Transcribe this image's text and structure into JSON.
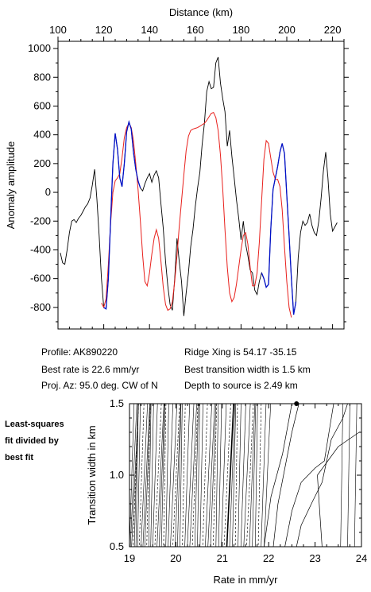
{
  "info": {
    "profile": "Profile: AK890220",
    "best_rate": "Best rate is 22.6 mm/yr",
    "proj_az": "Proj. Az: 95.0 deg. CW of N",
    "ridge_xing": "Ridge Xing is 54.17 -35.15",
    "best_width": "Best transition width is 1.5 km",
    "depth": "Depth to source is   2.49 km"
  },
  "side_note": [
    "Least-squares",
    "fit divided by",
    "best fit"
  ],
  "colors": {
    "observed": "#000000",
    "model": "#e8201c",
    "fit_window": "#0010c8",
    "contour": "#000000"
  },
  "chart_data": [
    {
      "type": "line",
      "title": "",
      "xlabel": "Distance (km)",
      "ylabel": "Anomaly amplitude",
      "xlim": [
        100,
        225
      ],
      "ylim": [
        -950,
        1050
      ],
      "xticks": [
        100,
        120,
        140,
        160,
        180,
        200,
        220
      ],
      "yticks": [
        -800,
        -600,
        -400,
        -200,
        0,
        200,
        400,
        600,
        800,
        1000
      ],
      "grid": false,
      "series": [
        {
          "role": "observed",
          "points": [
            [
              101,
              -420
            ],
            [
              102,
              -490
            ],
            [
              103,
              -500
            ],
            [
              104,
              -400
            ],
            [
              105,
              -280
            ],
            [
              106,
              -200
            ],
            [
              107,
              -190
            ],
            [
              108,
              -210
            ],
            [
              109,
              -180
            ],
            [
              110,
              -160
            ],
            [
              111,
              -130
            ],
            [
              112,
              -100
            ],
            [
              113,
              -80
            ],
            [
              114,
              -40
            ],
            [
              115,
              50
            ],
            [
              116,
              160
            ],
            [
              117,
              -50
            ],
            [
              118,
              -300
            ],
            [
              119,
              -600
            ],
            [
              120,
              -800
            ],
            [
              121,
              -810
            ],
            [
              122,
              -600
            ],
            [
              123,
              -200
            ],
            [
              124,
              200
            ],
            [
              125,
              410
            ],
            [
              126,
              300
            ],
            [
              127,
              100
            ],
            [
              128,
              40
            ],
            [
              129,
              200
            ],
            [
              130,
              420
            ],
            [
              131,
              490
            ],
            [
              132,
              440
            ],
            [
              133,
              280
            ],
            [
              134,
              160
            ],
            [
              135,
              80
            ],
            [
              136,
              30
            ],
            [
              137,
              10
            ],
            [
              138,
              60
            ],
            [
              139,
              100
            ],
            [
              140,
              130
            ],
            [
              141,
              70
            ],
            [
              142,
              120
            ],
            [
              143,
              150
            ],
            [
              144,
              100
            ],
            [
              145,
              -80
            ],
            [
              146,
              -250
            ],
            [
              147,
              -480
            ],
            [
              148,
              -650
            ],
            [
              149,
              -780
            ],
            [
              150,
              -820
            ],
            [
              151,
              -600
            ],
            [
              152,
              -320
            ],
            [
              153,
              -480
            ],
            [
              154,
              -620
            ],
            [
              155,
              -860
            ],
            [
              156,
              -700
            ],
            [
              157,
              -560
            ],
            [
              158,
              -380
            ],
            [
              159,
              -260
            ],
            [
              160,
              -100
            ],
            [
              161,
              30
            ],
            [
              162,
              140
            ],
            [
              163,
              330
            ],
            [
              164,
              480
            ],
            [
              165,
              700
            ],
            [
              166,
              770
            ],
            [
              167,
              720
            ],
            [
              168,
              730
            ],
            [
              169,
              900
            ],
            [
              170,
              940
            ],
            [
              171,
              760
            ],
            [
              172,
              650
            ],
            [
              173,
              560
            ],
            [
              174,
              320
            ],
            [
              175,
              430
            ],
            [
              176,
              250
            ],
            [
              177,
              100
            ],
            [
              178,
              -50
            ],
            [
              179,
              -180
            ],
            [
              180,
              -330
            ],
            [
              181,
              -200
            ],
            [
              182,
              -360
            ],
            [
              183,
              -440
            ],
            [
              184,
              -540
            ],
            [
              185,
              -560
            ],
            [
              186,
              -680
            ],
            [
              187,
              -710
            ],
            [
              188,
              -620
            ],
            [
              189,
              -560
            ],
            [
              190,
              -600
            ],
            [
              191,
              -660
            ],
            [
              192,
              -640
            ],
            [
              193,
              -260
            ],
            [
              194,
              20
            ],
            [
              195,
              100
            ],
            [
              196,
              180
            ],
            [
              197,
              280
            ],
            [
              198,
              340
            ],
            [
              199,
              270
            ],
            [
              200,
              -20
            ],
            [
              201,
              -300
            ],
            [
              202,
              -600
            ],
            [
              203,
              -850
            ],
            [
              204,
              -760
            ],
            [
              205,
              -450
            ],
            [
              206,
              -280
            ],
            [
              207,
              -200
            ],
            [
              208,
              -230
            ],
            [
              209,
              -210
            ],
            [
              210,
              -150
            ],
            [
              211,
              -230
            ],
            [
              212,
              -280
            ],
            [
              213,
              -300
            ],
            [
              214,
              -200
            ],
            [
              215,
              -40
            ],
            [
              216,
              150
            ],
            [
              217,
              280
            ],
            [
              218,
              100
            ],
            [
              219,
              -150
            ],
            [
              220,
              -270
            ],
            [
              221,
              -240
            ],
            [
              222,
              -210
            ]
          ]
        },
        {
          "role": "model",
          "points": [
            [
              119,
              -770
            ],
            [
              120,
              -800
            ],
            [
              121,
              -740
            ],
            [
              122,
              -500
            ],
            [
              123,
              -220
            ],
            [
              124,
              0
            ],
            [
              125,
              80
            ],
            [
              126,
              100
            ],
            [
              127,
              130
            ],
            [
              128,
              240
            ],
            [
              129,
              380
            ],
            [
              130,
              450
            ],
            [
              131,
              480
            ],
            [
              132,
              450
            ],
            [
              133,
              360
            ],
            [
              134,
              200
            ],
            [
              135,
              20
            ],
            [
              136,
              -200
            ],
            [
              137,
              -440
            ],
            [
              138,
              -620
            ],
            [
              139,
              -650
            ],
            [
              140,
              -560
            ],
            [
              141,
              -430
            ],
            [
              142,
              -320
            ],
            [
              143,
              -260
            ],
            [
              144,
              -320
            ],
            [
              145,
              -480
            ],
            [
              146,
              -660
            ],
            [
              147,
              -780
            ],
            [
              148,
              -820
            ],
            [
              149,
              -810
            ],
            [
              150,
              -760
            ],
            [
              151,
              -620
            ],
            [
              152,
              -440
            ],
            [
              153,
              -240
            ],
            [
              154,
              -60
            ],
            [
              155,
              120
            ],
            [
              156,
              290
            ],
            [
              157,
              390
            ],
            [
              158,
              430
            ],
            [
              159,
              440
            ],
            [
              160,
              445
            ],
            [
              161,
              450
            ],
            [
              162,
              460
            ],
            [
              163,
              470
            ],
            [
              164,
              480
            ],
            [
              165,
              500
            ],
            [
              166,
              525
            ],
            [
              167,
              550
            ],
            [
              168,
              555
            ],
            [
              169,
              520
            ],
            [
              170,
              430
            ],
            [
              171,
              260
            ],
            [
              172,
              20
            ],
            [
              173,
              -260
            ],
            [
              174,
              -520
            ],
            [
              175,
              -700
            ],
            [
              176,
              -760
            ],
            [
              177,
              -730
            ],
            [
              178,
              -640
            ],
            [
              179,
              -520
            ],
            [
              180,
              -400
            ],
            [
              181,
              -300
            ],
            [
              182,
              -280
            ],
            [
              183,
              -360
            ],
            [
              184,
              -520
            ],
            [
              185,
              -650
            ],
            [
              186,
              -650
            ],
            [
              187,
              -560
            ],
            [
              188,
              -350
            ],
            [
              189,
              -60
            ],
            [
              190,
              230
            ],
            [
              191,
              360
            ],
            [
              192,
              340
            ],
            [
              193,
              240
            ],
            [
              194,
              140
            ],
            [
              195,
              90
            ],
            [
              196,
              90
            ],
            [
              197,
              40
            ],
            [
              198,
              -120
            ],
            [
              199,
              -380
            ],
            [
              200,
              -620
            ],
            [
              201,
              -800
            ],
            [
              202,
              -870
            ]
          ]
        },
        {
          "role": "fit_window",
          "points": [
            [
              120,
              -800
            ],
            [
              121,
              -810
            ],
            [
              122,
              -600
            ],
            [
              123,
              -200
            ],
            [
              124,
              200
            ],
            [
              125,
              410
            ],
            [
              126,
              300
            ],
            [
              127,
              100
            ],
            [
              128,
              40
            ],
            [
              129,
              200
            ],
            [
              130,
              420
            ],
            [
              131,
              490
            ],
            [
              132,
              440
            ],
            [
              133,
              280
            ],
            [
              134,
              160
            ],
            [
              135,
              80
            ],
            [
              136,
              30
            ],
            [
              189,
              -560
            ],
            [
              190,
              -600
            ],
            [
              191,
              -660
            ],
            [
              192,
              -640
            ],
            [
              193,
              -260
            ],
            [
              194,
              20
            ],
            [
              195,
              100
            ],
            [
              196,
              180
            ],
            [
              197,
              280
            ],
            [
              198,
              340
            ],
            [
              199,
              270
            ],
            [
              200,
              -20
            ],
            [
              201,
              -300
            ],
            [
              202,
              -600
            ],
            [
              203,
              -850
            ],
            [
              204,
              -760
            ]
          ]
        }
      ]
    },
    {
      "type": "contour",
      "title": "",
      "xlabel": "Rate in mm/yr",
      "ylabel": "Transition width in km",
      "xlim": [
        19,
        24
      ],
      "ylim": [
        0.5,
        1.5
      ],
      "xticks": [
        19,
        20,
        21,
        22,
        23,
        24
      ],
      "yticks": [
        0.5,
        1.0,
        1.5
      ],
      "best_fit": {
        "rate": 22.6,
        "width": 1.5
      },
      "contour_lines": [
        [
          [
            22.1,
            0.5
          ],
          [
            22.2,
            0.8
          ],
          [
            22.35,
            1.05
          ],
          [
            22.5,
            1.3
          ],
          [
            22.65,
            1.5
          ]
        ],
        [
          [
            22.35,
            0.5
          ],
          [
            22.5,
            0.75
          ],
          [
            22.7,
            0.95
          ],
          [
            23.0,
            1.05
          ],
          [
            23.2,
            1.1
          ],
          [
            23.3,
            1.3
          ],
          [
            23.4,
            1.5
          ]
        ],
        [
          [
            21.9,
            0.5
          ],
          [
            22.05,
            0.85
          ],
          [
            22.3,
            1.15
          ],
          [
            22.5,
            1.5
          ]
        ],
        [
          [
            22.6,
            0.5
          ],
          [
            22.7,
            0.65
          ],
          [
            22.95,
            0.82
          ],
          [
            23.15,
            0.95
          ],
          [
            23.25,
            1.1
          ],
          [
            23.35,
            1.25
          ],
          [
            23.6,
            1.4
          ],
          [
            23.7,
            1.5
          ]
        ],
        [
          [
            23.15,
            0.5
          ],
          [
            23.1,
            0.75
          ],
          [
            23.05,
            1.0
          ],
          [
            23.5,
            1.2
          ],
          [
            23.95,
            1.3
          ]
        ]
      ]
    }
  ]
}
